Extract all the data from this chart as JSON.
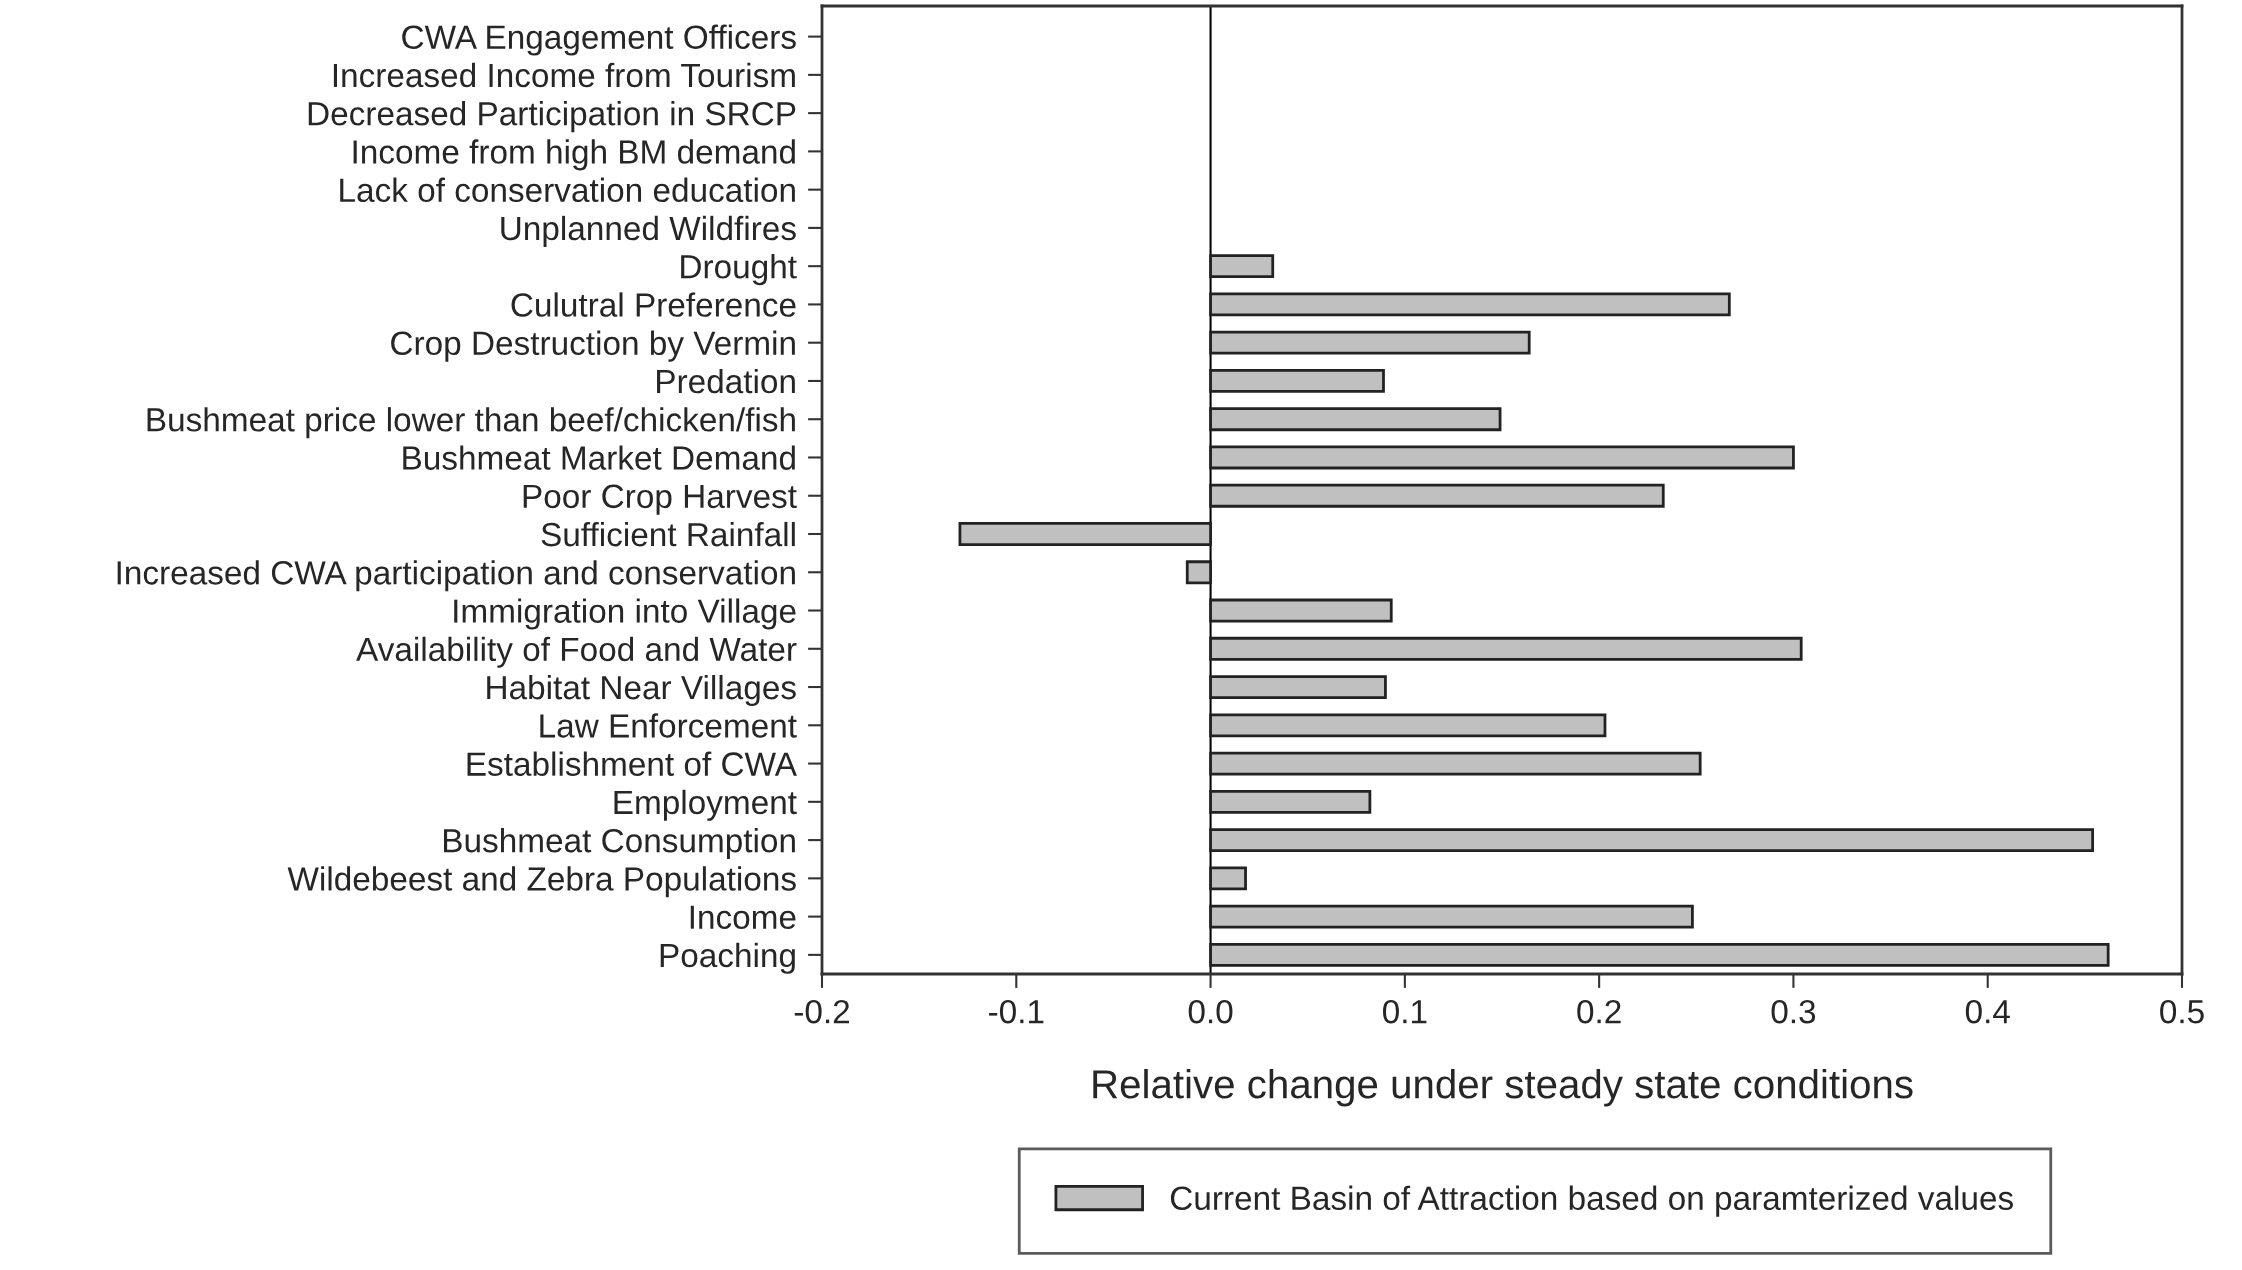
{
  "chart_data": {
    "type": "bar",
    "orientation": "horizontal",
    "xlabel": "Relative change under steady state conditions",
    "categories": [
      "CWA Engagement Officers",
      "Increased Income from Tourism",
      "Decreased Participation in SRCP",
      "Income from high BM demand",
      "Lack of conservation education",
      "Unplanned Wildfires",
      "Drought",
      "Culutral Preference",
      "Crop Destruction by Vermin",
      "Predation",
      "Bushmeat price lower than beef/chicken/fish",
      "Bushmeat Market Demand",
      "Poor Crop Harvest",
      "Sufficient Rainfall",
      "Increased CWA participation and conservation",
      "Immigration into Village",
      "Availability of Food and Water",
      "Habitat Near Villages",
      "Law Enforcement",
      "Establishment of CWA",
      "Employment",
      "Bushmeat Consumption",
      "Wildebeest and Zebra Populations",
      "Income",
      "Poaching"
    ],
    "series": [
      {
        "name": "Current Basin of Attraction based on paramterized values",
        "color": "#c0c0c0",
        "values": [
          null,
          null,
          null,
          null,
          null,
          null,
          0.032,
          0.267,
          0.164,
          0.089,
          0.149,
          0.3,
          0.233,
          -0.129,
          -0.012,
          0.093,
          0.304,
          0.09,
          0.203,
          0.252,
          0.082,
          0.454,
          0.018,
          0.248,
          0.462
        ]
      }
    ],
    "xlim": [
      -0.2,
      0.5
    ],
    "xticks": [
      {
        "value": -0.2,
        "label": "-0.2"
      },
      {
        "value": -0.1,
        "label": "-0.1"
      },
      {
        "value": 0,
        "label": "0.0"
      },
      {
        "value": 0.1,
        "label": "0.1"
      },
      {
        "value": 0.2,
        "label": "0.2"
      },
      {
        "value": 0.3,
        "label": "0.3"
      },
      {
        "value": 0.4,
        "label": "0.4"
      },
      {
        "value": 0.5,
        "label": "0.5"
      }
    ],
    "ref_lines": [
      {
        "axis": "x",
        "value": 0,
        "color": "#000000"
      }
    ],
    "grid": false,
    "legend": "bottom"
  }
}
